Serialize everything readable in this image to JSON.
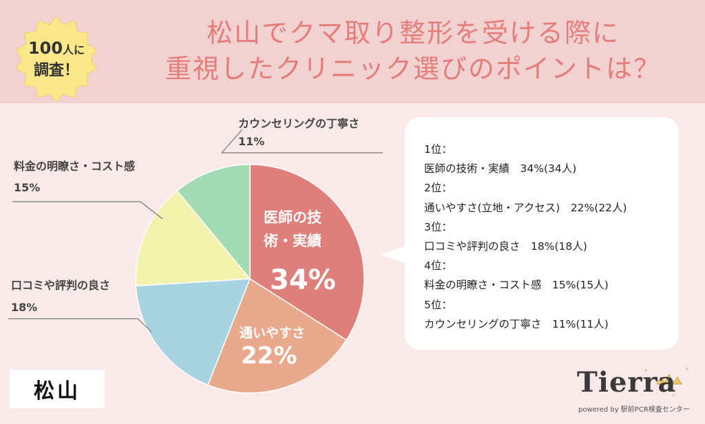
{
  "header": {
    "title_line1": "松山でクマ取り整形を受ける際に",
    "title_line2": "重視したクリニック選びのポイントは？"
  },
  "badge": {
    "line1_num": "100",
    "line1_suffix": "人に",
    "line2": "調査！"
  },
  "chart_data": {
    "type": "pie",
    "title": "重視したクリニック選びのポイント",
    "slices": [
      {
        "label": "医師の技術・実績",
        "value": 34,
        "color": "#df7f7b"
      },
      {
        "label": "通いやすさ",
        "value": 22,
        "color": "#e9a98c"
      },
      {
        "label": "口コミや評判の良さ",
        "value": 18,
        "color": "#a8d3e0"
      },
      {
        "label": "料金の明瞭さ・コスト感",
        "value": 15,
        "color": "#f4f3ad"
      },
      {
        "label": "カウンセリングの丁寧さ",
        "value": 11,
        "color": "#a3dcb4"
      }
    ],
    "slice_labels": {
      "s0_line1": "医師の技",
      "s0_line2": "術・実績",
      "s0_pct": "34%",
      "s1_line1": "通いやすさ",
      "s1_pct": "22%"
    },
    "outer_labels": {
      "counseling_title": "カウンセリングの丁寧さ",
      "counseling_pct": "11%",
      "price_title": "料金の明瞭さ・コスト感",
      "price_pct": "15%",
      "review_title": "口コミや評判の良さ",
      "review_pct": "18%"
    }
  },
  "ranking": [
    "1位：",
    "医師の技術・実績　34%(34人)",
    "2位：",
    "通いやすさ(立地・アクセス)　22%(22人)",
    "3位：",
    "口コミや評判の良さ　18%(18人)",
    "4位：",
    "料金の明瞭さ・コスト感　15%(15人)",
    "5位：",
    "カウンセリングの丁寧さ　11%(11人)"
  ],
  "region": "松山",
  "logo": {
    "name": "Tierra",
    "sub": "powered by 駅前PCR検査センター"
  }
}
